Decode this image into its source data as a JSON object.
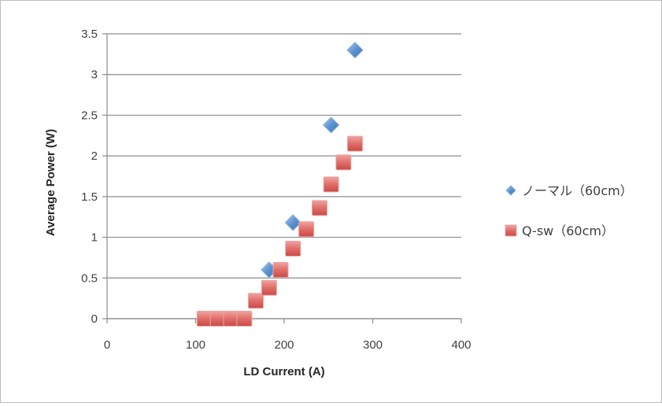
{
  "chart_data": {
    "type": "scatter",
    "xlabel": "LD Current (A)",
    "ylabel": "Average Power (W)",
    "xlim": [
      0,
      400
    ],
    "ylim": [
      0,
      3.5
    ],
    "xticks": [
      "0",
      "100",
      "200",
      "300",
      "400"
    ],
    "yticks": [
      "0",
      "0.5",
      "1",
      "1.5",
      "2",
      "2.5",
      "3",
      "3.5"
    ],
    "grid": "horizontal",
    "legend_position": "right",
    "series": [
      {
        "name": "ノーマル（60cm）",
        "marker": "diamond",
        "color": "#4f81bd",
        "x": [
          183,
          210,
          253,
          280
        ],
        "y": [
          0.6,
          1.18,
          2.38,
          3.3
        ]
      },
      {
        "name": "Q-sw（60cm）",
        "marker": "square",
        "color": "#c0504d",
        "x": [
          110,
          125,
          140,
          155,
          168,
          183,
          196,
          210,
          225,
          240,
          253,
          267,
          280
        ],
        "y": [
          0.0,
          0.0,
          0.0,
          0.0,
          0.22,
          0.38,
          0.6,
          0.86,
          1.1,
          1.36,
          1.65,
          1.92,
          2.15
        ]
      }
    ]
  }
}
